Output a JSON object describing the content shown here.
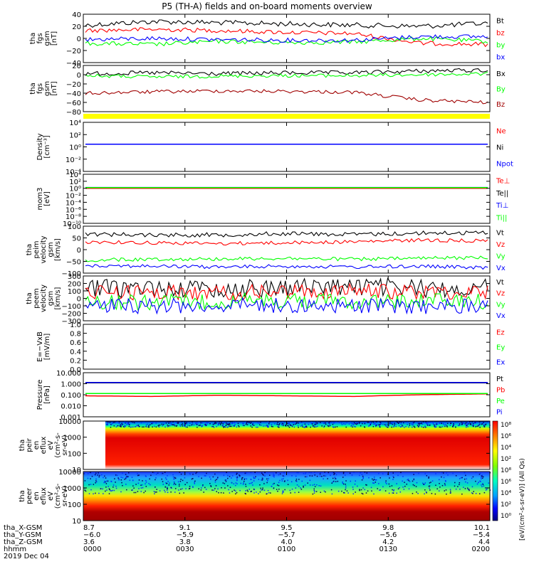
{
  "title": "P5 (TH-A) fields and on-board moments overview",
  "colors": {
    "black": "#000000",
    "red": "#ff0000",
    "green": "#00ff00",
    "blue": "#0000ff",
    "darkred": "#a00000",
    "yellow": "#ffff00"
  },
  "chart_data": [
    {
      "type": "line",
      "ylabel": [
        "tha",
        "fgs",
        "gsm",
        "[nT]"
      ],
      "ylim": [
        -40,
        40
      ],
      "ticks": [
        "40",
        "20",
        "0",
        "−20",
        "−40"
      ],
      "series": [
        {
          "name": "Bt",
          "color": "black",
          "values": [
            22,
            28,
            26,
            24,
            22,
            20,
            25
          ]
        },
        {
          "name": "bz",
          "color": "red",
          "values": [
            13,
            15,
            13,
            10,
            8,
            -8,
            -10
          ]
        },
        {
          "name": "by",
          "color": "green",
          "values": [
            -8,
            -10,
            -5,
            -7,
            -6,
            0,
            -5
          ]
        },
        {
          "name": "bx",
          "color": "blue",
          "values": [
            -2,
            0,
            -2,
            -3,
            -3,
            3,
            3
          ]
        }
      ]
    },
    {
      "type": "line",
      "ylabel": [
        "tha",
        "fgs",
        "gsm",
        "[nT]"
      ],
      "ylim": [
        -80,
        20
      ],
      "ticks": [
        "20",
        "0",
        "−20",
        "−40",
        "−60",
        "−80"
      ],
      "series": [
        {
          "name": "Bx",
          "color": "black",
          "values": [
            2,
            4,
            2,
            4,
            4,
            8,
            10
          ]
        },
        {
          "name": "By",
          "color": "green",
          "values": [
            -2,
            -5,
            -3,
            -2,
            -2,
            0,
            2
          ]
        },
        {
          "name": "Bz",
          "color": "darkred",
          "values": [
            -40,
            -37,
            -35,
            -36,
            -38,
            -55,
            -60
          ]
        }
      ]
    },
    {
      "type": "line",
      "ylabel": [
        "Density",
        "[cm⁻³]"
      ],
      "ylim": [
        -5,
        4
      ],
      "scale": "log",
      "ticks": [
        "10⁴",
        "10²",
        "10⁰",
        "10⁻²",
        "10⁻⁴"
      ],
      "series": [
        {
          "name": "Ne",
          "color": "red",
          "values": [
            1,
            1,
            1,
            1,
            1,
            1,
            1
          ]
        },
        {
          "name": "Ni",
          "color": "black",
          "values": [
            1,
            1,
            1,
            1,
            1,
            1,
            1
          ]
        },
        {
          "name": "Npot",
          "color": "blue",
          "values": [
            1,
            1,
            1,
            1,
            1,
            1,
            1
          ]
        }
      ]
    },
    {
      "type": "line",
      "ylabel": [
        "mom3",
        "[eV]"
      ],
      "ylim": [
        -10,
        4
      ],
      "scale": "log",
      "ticks": [
        "10⁴",
        "10²",
        "10⁰",
        "10⁻²",
        "10⁻⁴",
        "10⁻⁶",
        "10⁻⁸",
        "10⁻¹⁰"
      ],
      "series": [
        {
          "name": "Te⊥",
          "color": "red",
          "values": [
            1,
            1,
            1,
            1,
            1,
            1,
            1
          ]
        },
        {
          "name": "Te||",
          "color": "black",
          "values": [
            1.5,
            1.5,
            1.5,
            1.5,
            1.5,
            1.5,
            1.5
          ]
        },
        {
          "name": "Ti⊥",
          "color": "blue",
          "values": [
            1.7,
            1.7,
            1.7,
            1.7,
            1.7,
            1.7,
            1.7
          ]
        },
        {
          "name": "Ti||",
          "color": "green",
          "values": [
            1.6,
            1.6,
            1.6,
            1.6,
            1.6,
            1.6,
            1.6
          ]
        }
      ]
    },
    {
      "type": "line",
      "ylabel": [
        "tha",
        "peim",
        "velocity",
        "gsm",
        "[km/s]"
      ],
      "ylim": [
        -120,
        150
      ],
      "ticks": [
        "100",
        "50",
        "0",
        "−50",
        "−100"
      ],
      "series": [
        {
          "name": "Vt",
          "color": "black",
          "values": [
            105,
            100,
            100,
            108,
            102,
            110,
            112
          ]
        },
        {
          "name": "Vz",
          "color": "red",
          "values": [
            60,
            55,
            50,
            55,
            60,
            70,
            65
          ]
        },
        {
          "name": "Vy",
          "color": "green",
          "values": [
            -45,
            -40,
            -38,
            -35,
            -40,
            -35,
            -30
          ]
        },
        {
          "name": "Vx",
          "color": "blue",
          "values": [
            -75,
            -80,
            -85,
            -80,
            -85,
            -80,
            -90
          ]
        }
      ]
    },
    {
      "type": "line",
      "ylabel": [
        "tha",
        "peem",
        "velocity",
        "gsm",
        "[km/s]"
      ],
      "ylim": [
        -300,
        300
      ],
      "ticks": [
        "300",
        "200",
        "100",
        "0",
        "−100",
        "−200",
        "−300"
      ],
      "series": [
        {
          "name": "Vt",
          "color": "black",
          "values": [
            130,
            140,
            120,
            150,
            160,
            130,
            140
          ]
        },
        {
          "name": "Vz",
          "color": "red",
          "values": [
            90,
            80,
            70,
            90,
            100,
            85,
            90
          ]
        },
        {
          "name": "Vy",
          "color": "green",
          "values": [
            -40,
            -50,
            -40,
            -30,
            -40,
            -30,
            -40
          ]
        },
        {
          "name": "Vx",
          "color": "blue",
          "values": [
            -90,
            -100,
            -95,
            -90,
            -100,
            -110,
            -100
          ]
        }
      ]
    },
    {
      "type": "line",
      "ylabel": [
        "E=−VxB",
        "[mV/m]"
      ],
      "ylim": [
        0,
        1
      ],
      "ticks": [
        "1.0",
        "0.8",
        "0.6",
        "0.4",
        "0.2",
        "0.0"
      ],
      "series": [
        {
          "name": "Ez",
          "color": "red",
          "values": []
        },
        {
          "name": "Ey",
          "color": "green",
          "values": []
        },
        {
          "name": "Ex",
          "color": "blue",
          "values": []
        }
      ]
    },
    {
      "type": "line",
      "ylabel": [
        "Pressure",
        "[nPa]"
      ],
      "ylim": [
        -3,
        1
      ],
      "scale": "log",
      "ticks": [
        "10.000",
        "1.000",
        "0.100",
        "0.010",
        "0.001"
      ],
      "series": [
        {
          "name": "Pt",
          "color": "black",
          "values": [
            1.2,
            1.2,
            1.2,
            1.2,
            1.2,
            1.2,
            1.2
          ]
        },
        {
          "name": "Pb",
          "color": "red",
          "values": [
            0.08,
            0.07,
            0.09,
            0.08,
            0.07,
            0.1,
            0.12
          ]
        },
        {
          "name": "Pe",
          "color": "green",
          "values": [
            0.13,
            0.13,
            0.13,
            0.13,
            0.13,
            0.13,
            0.13
          ]
        },
        {
          "name": "Pi",
          "color": "blue",
          "values": [
            1.3,
            1.3,
            1.3,
            1.3,
            1.3,
            1.3,
            1.3
          ]
        }
      ]
    },
    {
      "type": "heatmap",
      "ylabel": [
        "tha",
        "peir",
        "en",
        "eflux",
        "eV",
        "(cm²-s-",
        "sr-eV)"
      ],
      "ylim": [
        10,
        10000
      ],
      "scale": "log",
      "ticks": [
        "10000",
        "1000",
        "100",
        "10"
      ]
    },
    {
      "type": "heatmap",
      "ylabel": [
        "tha",
        "peer",
        "en",
        "eflux",
        "eV",
        "(cm²-s-",
        "sr-eV)"
      ],
      "ylim": [
        10,
        10000
      ],
      "scale": "log",
      "ticks": [
        "10000",
        "1000",
        "100",
        "10"
      ]
    }
  ],
  "colorbar": {
    "ticks": [
      "10⁸",
      "10⁶",
      "10⁴",
      "10²",
      "10⁸",
      "10⁶",
      "10⁴",
      "10²",
      "10⁰"
    ],
    "label": "[eV/(cm²-s-sr-eV)] (All Qs)"
  },
  "x_axis": {
    "row_labels": [
      "tha_X-GSM",
      "tha_Y-GSM",
      "tha_Z-GSM",
      "hhmm",
      "2019 Dec 04"
    ],
    "columns": [
      [
        "8.7",
        "−6.0",
        "3.6",
        "0000"
      ],
      [
        "9.1",
        "−5.9",
        "3.8",
        "0030"
      ],
      [
        "9.5",
        "−5.7",
        "4.0",
        "0100"
      ],
      [
        "9.8",
        "−5.6",
        "4.2",
        "0130"
      ],
      [
        "10.1",
        "−5.4",
        "4.4",
        "0200"
      ]
    ]
  }
}
